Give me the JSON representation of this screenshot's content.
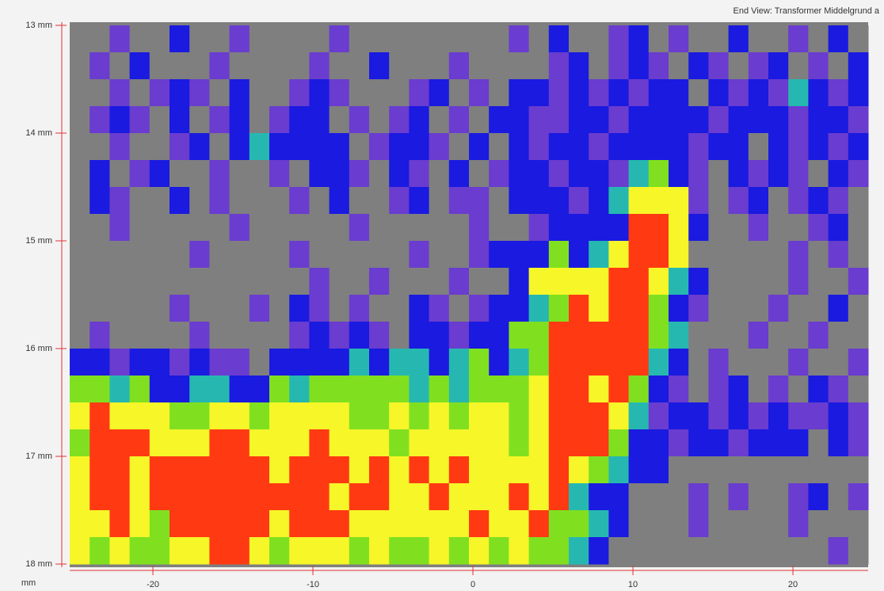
{
  "chart_data": {
    "type": "heatmap",
    "title": "End View: Transformer Middelgrund a",
    "x_label": "mm",
    "xlim": [
      -25.2,
      24.7
    ],
    "xticks": [
      -20,
      -10,
      0,
      10,
      20
    ],
    "ylim": [
      13,
      18
    ],
    "yticks": [
      {
        "value": 13,
        "label": "13 mm"
      },
      {
        "value": 14,
        "label": "14 mm"
      },
      {
        "value": 15,
        "label": "15 mm"
      },
      {
        "value": 16,
        "label": "16 mm"
      },
      {
        "value": 17,
        "label": "17 mm"
      },
      {
        "value": 18,
        "label": "18 mm"
      }
    ],
    "colors": [
      "#7f7f7f",
      "#6a3ccf",
      "#1a1ae0",
      "#26b8b0",
      "#80e020",
      "#f6f628",
      "#ff3a12"
    ],
    "z": [
      [
        0,
        0,
        1,
        0,
        0,
        2,
        0,
        0,
        1,
        0,
        0,
        0,
        0,
        1,
        0,
        0,
        0,
        0,
        0,
        0,
        0,
        0,
        1,
        0,
        2,
        0,
        0,
        1,
        2,
        0,
        1,
        0,
        0,
        2,
        0,
        0,
        1,
        0,
        2,
        0
      ],
      [
        0,
        1,
        0,
        2,
        0,
        0,
        0,
        1,
        0,
        0,
        0,
        0,
        1,
        0,
        0,
        2,
        0,
        0,
        0,
        1,
        0,
        0,
        0,
        0,
        1,
        2,
        0,
        1,
        2,
        1,
        0,
        2,
        1,
        0,
        1,
        2,
        0,
        1,
        0,
        2
      ],
      [
        0,
        0,
        1,
        0,
        1,
        2,
        1,
        0,
        2,
        0,
        0,
        1,
        2,
        1,
        0,
        0,
        0,
        1,
        2,
        0,
        1,
        0,
        2,
        2,
        1,
        2,
        1,
        2,
        1,
        2,
        2,
        0,
        2,
        1,
        2,
        1,
        3,
        2,
        1,
        2
      ],
      [
        0,
        1,
        2,
        1,
        0,
        2,
        0,
        1,
        2,
        0,
        1,
        2,
        2,
        0,
        1,
        0,
        1,
        2,
        0,
        1,
        0,
        2,
        2,
        1,
        1,
        2,
        2,
        1,
        2,
        2,
        2,
        2,
        1,
        2,
        2,
        2,
        1,
        2,
        2,
        1
      ],
      [
        0,
        0,
        1,
        0,
        0,
        1,
        2,
        0,
        2,
        3,
        2,
        2,
        2,
        2,
        0,
        1,
        2,
        2,
        1,
        0,
        2,
        0,
        2,
        1,
        2,
        2,
        1,
        2,
        2,
        2,
        2,
        1,
        2,
        2,
        0,
        2,
        1,
        2,
        1,
        2
      ],
      [
        0,
        2,
        0,
        1,
        2,
        0,
        0,
        1,
        0,
        0,
        1,
        0,
        2,
        2,
        1,
        0,
        2,
        1,
        0,
        2,
        0,
        1,
        2,
        2,
        1,
        2,
        2,
        1,
        3,
        4,
        2,
        1,
        0,
        2,
        1,
        2,
        1,
        0,
        2,
        1
      ],
      [
        0,
        2,
        1,
        0,
        0,
        2,
        0,
        1,
        0,
        0,
        0,
        1,
        0,
        2,
        0,
        0,
        1,
        2,
        0,
        1,
        1,
        0,
        2,
        2,
        2,
        1,
        2,
        3,
        5,
        5,
        5,
        1,
        0,
        1,
        2,
        0,
        1,
        2,
        1,
        0
      ],
      [
        0,
        0,
        1,
        0,
        0,
        0,
        0,
        0,
        1,
        0,
        0,
        0,
        0,
        0,
        1,
        0,
        0,
        0,
        0,
        0,
        1,
        0,
        0,
        1,
        2,
        2,
        2,
        2,
        6,
        6,
        5,
        2,
        0,
        0,
        1,
        0,
        0,
        1,
        2,
        0
      ],
      [
        0,
        0,
        0,
        0,
        0,
        0,
        1,
        0,
        0,
        0,
        0,
        1,
        0,
        0,
        0,
        0,
        0,
        1,
        0,
        0,
        1,
        2,
        2,
        2,
        4,
        2,
        3,
        5,
        6,
        6,
        5,
        0,
        0,
        0,
        0,
        0,
        1,
        0,
        1,
        0
      ],
      [
        0,
        0,
        0,
        0,
        0,
        0,
        0,
        0,
        0,
        0,
        0,
        0,
        1,
        0,
        0,
        1,
        0,
        0,
        0,
        1,
        0,
        0,
        2,
        5,
        5,
        5,
        5,
        6,
        6,
        5,
        3,
        2,
        0,
        0,
        0,
        0,
        1,
        0,
        0,
        1
      ],
      [
        0,
        0,
        0,
        0,
        0,
        1,
        0,
        0,
        0,
        1,
        0,
        2,
        1,
        0,
        1,
        0,
        0,
        2,
        1,
        0,
        1,
        2,
        2,
        3,
        4,
        6,
        5,
        6,
        6,
        4,
        2,
        1,
        0,
        0,
        0,
        1,
        0,
        0,
        2,
        0
      ],
      [
        0,
        1,
        0,
        0,
        0,
        0,
        1,
        0,
        0,
        0,
        0,
        1,
        2,
        1,
        2,
        1,
        0,
        2,
        2,
        1,
        2,
        2,
        4,
        4,
        6,
        6,
        6,
        6,
        6,
        4,
        3,
        0,
        0,
        0,
        1,
        0,
        0,
        1,
        0,
        0
      ],
      [
        2,
        2,
        1,
        2,
        2,
        1,
        2,
        1,
        1,
        0,
        2,
        2,
        2,
        2,
        3,
        2,
        3,
        3,
        2,
        3,
        4,
        2,
        3,
        4,
        6,
        6,
        6,
        6,
        6,
        3,
        2,
        0,
        1,
        0,
        0,
        0,
        1,
        0,
        0,
        1
      ],
      [
        4,
        4,
        3,
        4,
        2,
        2,
        3,
        3,
        2,
        2,
        4,
        3,
        4,
        4,
        4,
        4,
        4,
        3,
        4,
        3,
        4,
        4,
        4,
        5,
        6,
        6,
        5,
        6,
        4,
        2,
        1,
        0,
        1,
        2,
        0,
        1,
        0,
        2,
        1,
        0
      ],
      [
        5,
        6,
        5,
        5,
        5,
        4,
        4,
        5,
        5,
        4,
        5,
        5,
        5,
        5,
        4,
        4,
        5,
        4,
        5,
        4,
        5,
        5,
        4,
        5,
        6,
        6,
        6,
        5,
        3,
        1,
        2,
        2,
        1,
        2,
        1,
        2,
        1,
        1,
        2,
        1
      ],
      [
        4,
        6,
        6,
        6,
        5,
        5,
        5,
        6,
        6,
        5,
        5,
        5,
        6,
        5,
        5,
        5,
        4,
        5,
        5,
        5,
        5,
        5,
        4,
        5,
        6,
        6,
        6,
        4,
        2,
        2,
        1,
        2,
        2,
        1,
        2,
        2,
        2,
        0,
        2,
        1
      ],
      [
        5,
        6,
        6,
        5,
        6,
        6,
        6,
        6,
        6,
        6,
        5,
        6,
        6,
        6,
        5,
        6,
        5,
        6,
        5,
        6,
        5,
        5,
        5,
        5,
        6,
        5,
        4,
        3,
        2,
        2,
        0,
        0,
        0,
        0,
        0,
        0,
        0,
        0,
        0,
        0
      ],
      [
        5,
        6,
        6,
        5,
        6,
        6,
        6,
        6,
        6,
        6,
        6,
        6,
        6,
        5,
        6,
        6,
        5,
        5,
        6,
        5,
        5,
        5,
        6,
        5,
        6,
        3,
        2,
        2,
        0,
        0,
        0,
        1,
        0,
        1,
        0,
        0,
        1,
        2,
        0,
        1
      ],
      [
        5,
        5,
        6,
        5,
        4,
        6,
        6,
        6,
        6,
        6,
        5,
        6,
        6,
        6,
        5,
        5,
        5,
        5,
        5,
        5,
        6,
        5,
        5,
        6,
        4,
        4,
        3,
        2,
        0,
        0,
        0,
        1,
        0,
        0,
        0,
        0,
        1,
        0,
        0,
        0
      ],
      [
        5,
        4,
        5,
        4,
        4,
        5,
        5,
        6,
        6,
        5,
        4,
        5,
        5,
        5,
        4,
        5,
        4,
        4,
        5,
        4,
        5,
        4,
        5,
        4,
        4,
        3,
        2,
        0,
        0,
        0,
        0,
        0,
        0,
        0,
        0,
        0,
        0,
        0,
        1,
        0
      ]
    ]
  }
}
